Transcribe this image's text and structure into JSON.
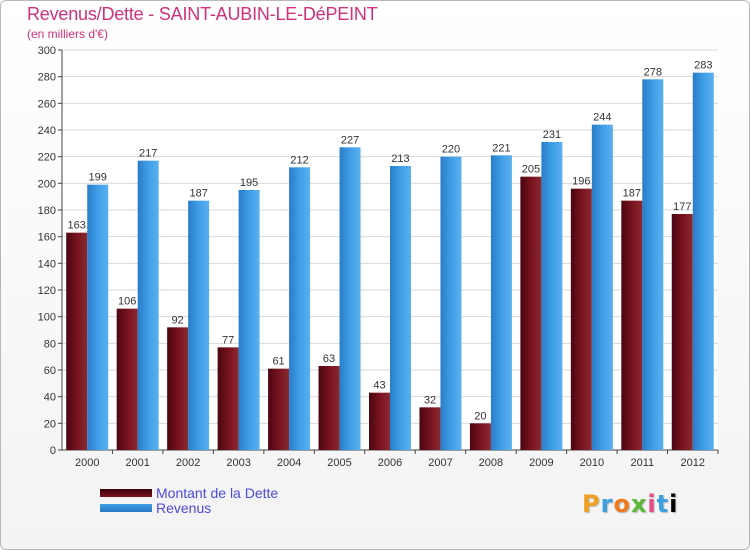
{
  "chart_data": {
    "type": "bar",
    "title": "Revenus/Dette - SAINT-AUBIN-LE-DéPEINT",
    "subtitle": "(en milliers d'€)",
    "xlabel": "",
    "ylabel": "",
    "ylim": [
      0,
      300
    ],
    "yticks": [
      0,
      20,
      40,
      60,
      80,
      100,
      120,
      140,
      160,
      180,
      200,
      220,
      240,
      260,
      280,
      300
    ],
    "grid": true,
    "legend_position": "bottom-left",
    "categories": [
      "2000",
      "2001",
      "2002",
      "2003",
      "2004",
      "2005",
      "2006",
      "2007",
      "2008",
      "2009",
      "2010",
      "2011",
      "2012"
    ],
    "series": [
      {
        "name": "Montant de la Dette",
        "color": "#7a1420",
        "values": [
          163,
          106,
          92,
          77,
          61,
          63,
          43,
          32,
          20,
          205,
          196,
          187,
          177
        ]
      },
      {
        "name": "Revenus",
        "color": "#3f9ee6",
        "values": [
          199,
          217,
          187,
          195,
          212,
          227,
          213,
          220,
          221,
          231,
          244,
          278,
          283
        ]
      }
    ]
  },
  "colors": {
    "title": "#d0307a",
    "legend_text": "#4a4ae0",
    "grid": "#d9d9d9",
    "axis": "#444444"
  },
  "logo_text": [
    "P",
    "r",
    "o",
    "x",
    "i",
    "t",
    "i"
  ]
}
